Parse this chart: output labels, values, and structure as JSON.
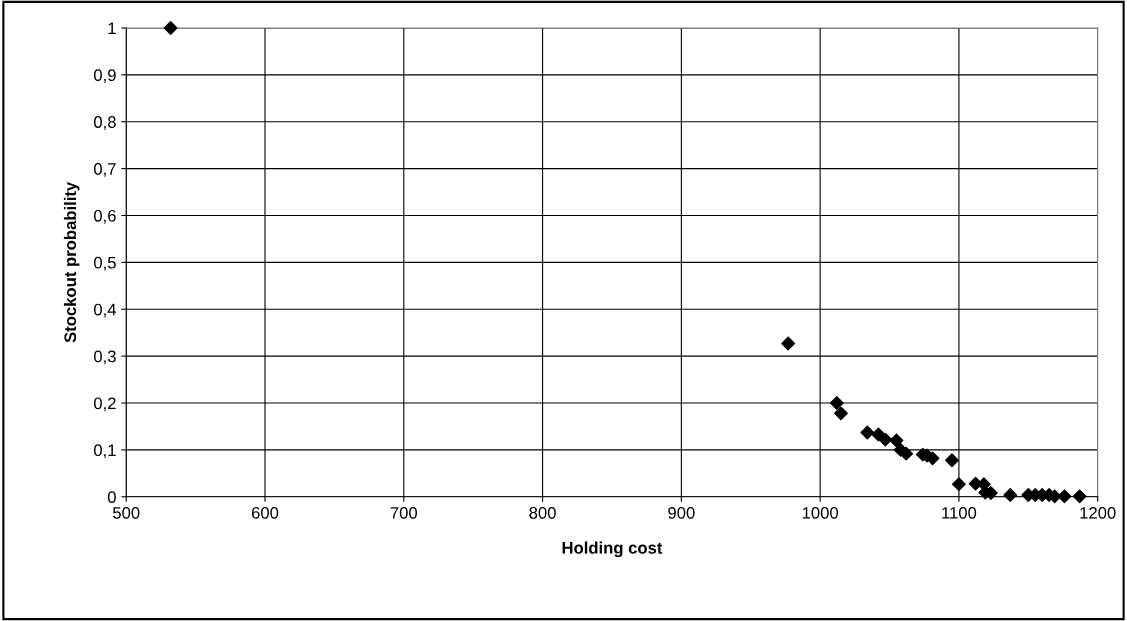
{
  "chart_data": {
    "type": "scatter",
    "xlabel": "Holding cost",
    "ylabel": "Stockout probability",
    "x": [
      532,
      977,
      1012,
      1015,
      1034,
      1042,
      1047,
      1055,
      1058,
      1062,
      1074,
      1077,
      1081,
      1095,
      1100,
      1112,
      1118,
      1119,
      1123,
      1137,
      1150,
      1155,
      1160,
      1165,
      1169,
      1176,
      1187
    ],
    "series": [
      {
        "color": "#000000",
        "values": [
          1.0,
          0.327,
          0.2,
          0.178,
          0.137,
          0.133,
          0.122,
          0.12,
          0.1,
          0.092,
          0.09,
          0.088,
          0.082,
          0.078,
          0.027,
          0.028,
          0.027,
          0.009,
          0.008,
          0.004,
          0.004,
          0.004,
          0.004,
          0.004,
          0.001,
          0.001,
          0.001
        ]
      }
    ],
    "xlim": [
      500,
      1200
    ],
    "xticks": [
      500,
      600,
      700,
      800,
      900,
      1000,
      1100,
      1200
    ],
    "ylim": [
      0,
      1
    ],
    "yticks": [
      0,
      {
        "value": 0.1,
        "label": "0,1"
      },
      {
        "value": 0.2,
        "label": "0,2"
      },
      {
        "value": 0.3,
        "label": "0,3"
      },
      {
        "value": 0.4,
        "label": "0,4"
      },
      {
        "value": 0.5,
        "label": "0,5"
      },
      {
        "value": 0.6,
        "label": "0,6"
      },
      {
        "value": 0.7,
        "label": "0,7"
      },
      {
        "value": 0.8,
        "label": "0,8"
      },
      {
        "value": 0.9,
        "label": "0,9"
      },
      1
    ],
    "grid": true,
    "marker": "diamond"
  }
}
